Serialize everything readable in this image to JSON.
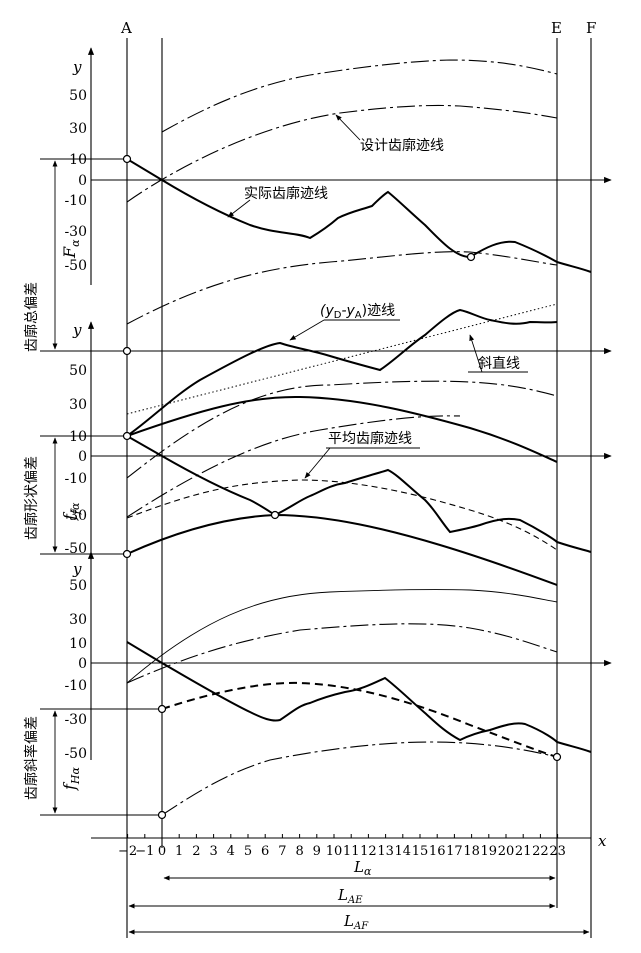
{
  "figure": {
    "point_labels": {
      "A": "A",
      "E": "E",
      "F": "F"
    },
    "axis_y_label": "y",
    "axis_x_label": "x",
    "panel1": {
      "yticks": [
        "50",
        "30",
        "10",
        "0",
        "-10",
        "-30",
        "-50"
      ],
      "side_label": "齿廓总偏差",
      "symbol_main": "F",
      "symbol_sub": "α",
      "label_design": "设计齿廓迹线",
      "label_actual": "实际齿廓迹线"
    },
    "panel2": {
      "yticks": [
        "50",
        "30",
        "10",
        "0",
        "-10",
        "-30",
        "-50"
      ],
      "side_label": "齿廓形状偏差",
      "symbol_main": "f",
      "symbol_sub": "fα",
      "label_diff_pre": "(y",
      "label_diff_sub1": "D",
      "label_diff_mid": "-y",
      "label_diff_sub2": "A",
      "label_diff_post": ")迹线",
      "label_slant": "斜直线",
      "label_mean": "平均齿廓迹线"
    },
    "panel3": {
      "yticks": [
        "50",
        "30",
        "10",
        "0",
        "-10",
        "-30",
        "-50"
      ],
      "side_label": "齿廓斜率偏差",
      "symbol_main": "f",
      "symbol_sub": "Hα"
    },
    "x_ticks": [
      "−2",
      "−1",
      "0",
      "1",
      "2",
      "3",
      "4",
      "5",
      "6",
      "7",
      "8",
      "9",
      "10",
      "11",
      "12",
      "13",
      "14",
      "15",
      "16",
      "17",
      "18",
      "19",
      "20",
      "21",
      "22",
      "23"
    ],
    "lengths": [
      {
        "main": "L",
        "sub": "α"
      },
      {
        "main": "L",
        "sub": "AE"
      },
      {
        "main": "L",
        "sub": "AF"
      }
    ]
  }
}
